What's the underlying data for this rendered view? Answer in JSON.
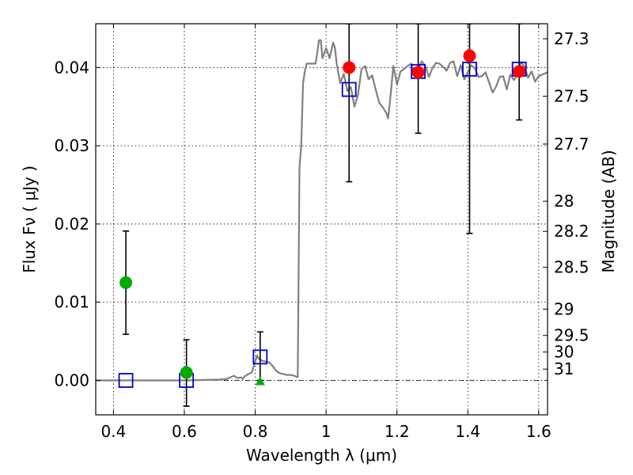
{
  "chart_data": {
    "type": "scatter",
    "xlabel": "Wavelength  λ (μm)",
    "ylabel": "Flux  Fν  ( μJy )",
    "y2label": "Magnitude (AB)",
    "xlim": [
      0.35,
      1.625
    ],
    "ylim": [
      -0.0044,
      0.0456
    ],
    "grid": true,
    "x_ticks": [
      0.4,
      0.6,
      0.8,
      1.0,
      1.2,
      1.4,
      1.6
    ],
    "x_tick_labels": [
      "0.4",
      "0.6",
      "0.8",
      "1",
      "1.2",
      "1.4",
      "1.6"
    ],
    "y_ticks": [
      0.0,
      0.01,
      0.02,
      0.03,
      0.04
    ],
    "y_tick_labels": [
      "0.00",
      "0.01",
      "0.02",
      "0.03",
      "0.04"
    ],
    "mag_ticks": [
      {
        "label": "27.3",
        "flux": 0.04368
      },
      {
        "label": "27.5",
        "flux": 0.03633
      },
      {
        "label": "27.7",
        "flux": 0.03022
      },
      {
        "label": "28",
        "flux": 0.02291
      },
      {
        "label": "28.2",
        "flux": 0.01906
      },
      {
        "label": "28.5",
        "flux": 0.01446
      },
      {
        "label": "29",
        "flux": 0.00912
      },
      {
        "label": "29.5",
        "flux": 0.00575
      },
      {
        "label": "30",
        "flux": 0.00363
      },
      {
        "label": "31",
        "flux": 0.00145
      }
    ],
    "colors": {
      "model": "#808080",
      "model_photometry": "#0000cc",
      "red_points": "#ff0000",
      "green_points": "#00aa00",
      "errorbar": "#000000",
      "zero_line": "#000000"
    },
    "model_sed": {
      "x": [
        0.35,
        0.6,
        0.7,
        0.72,
        0.74,
        0.75,
        0.76,
        0.765,
        0.77,
        0.78,
        0.79,
        0.8,
        0.805,
        0.81,
        0.82,
        0.83,
        0.84,
        0.85,
        0.86,
        0.87,
        0.88,
        0.89,
        0.9,
        0.91,
        0.92,
        0.925,
        0.93,
        0.935,
        0.94,
        0.945,
        0.95,
        0.96,
        0.97,
        0.975,
        0.98,
        0.985,
        0.99,
        1.0,
        1.01,
        1.02,
        1.025,
        1.03,
        1.04,
        1.05,
        1.06,
        1.07,
        1.08,
        1.09,
        1.1,
        1.11,
        1.12,
        1.13,
        1.14,
        1.15,
        1.16,
        1.17,
        1.175,
        1.18,
        1.19,
        1.2,
        1.21,
        1.22,
        1.23,
        1.24,
        1.25,
        1.26,
        1.27,
        1.28,
        1.29,
        1.3,
        1.31,
        1.32,
        1.33,
        1.34,
        1.35,
        1.36,
        1.37,
        1.38,
        1.39,
        1.4,
        1.41,
        1.42,
        1.43,
        1.44,
        1.45,
        1.46,
        1.47,
        1.48,
        1.49,
        1.5,
        1.51,
        1.52,
        1.53,
        1.54,
        1.55,
        1.56,
        1.57,
        1.58,
        1.59,
        1.6,
        1.61,
        1.625
      ],
      "y": [
        0.0,
        0.0,
        0.0001,
        0.0002,
        0.0006,
        0.0003,
        0.0004,
        0.0002,
        0.0005,
        0.0008,
        0.001,
        0.0024,
        0.0032,
        0.0028,
        0.0025,
        0.0024,
        0.0023,
        0.0018,
        0.0012,
        0.0009,
        0.0008,
        0.0007,
        0.0007,
        0.0006,
        0.0004,
        0.0272,
        0.03,
        0.038,
        0.0395,
        0.0405,
        0.0405,
        0.0405,
        0.0405,
        0.0418,
        0.0435,
        0.0435,
        0.0412,
        0.0425,
        0.0412,
        0.0432,
        0.0425,
        0.0405,
        0.038,
        0.0392,
        0.037,
        0.0375,
        0.035,
        0.0365,
        0.0398,
        0.0402,
        0.0385,
        0.039,
        0.0372,
        0.0355,
        0.0349,
        0.0342,
        0.0335,
        0.0355,
        0.0402,
        0.0378,
        0.0395,
        0.0398,
        0.0402,
        0.0405,
        0.0392,
        0.0398,
        0.0408,
        0.0402,
        0.0388,
        0.0399,
        0.0406,
        0.0405,
        0.0401,
        0.0396,
        0.0406,
        0.0408,
        0.0389,
        0.0403,
        0.0385,
        0.0394,
        0.0403,
        0.0399,
        0.0388,
        0.0389,
        0.0394,
        0.0381,
        0.0368,
        0.0376,
        0.0388,
        0.0389,
        0.0372,
        0.0391,
        0.0384,
        0.0392,
        0.0407,
        0.0401,
        0.0387,
        0.0395,
        0.0382,
        0.0389,
        0.0391,
        0.0394
      ]
    },
    "model_photometry": [
      {
        "x": 0.435,
        "y": 0.0
      },
      {
        "x": 0.606,
        "y": 0.0
      },
      {
        "x": 0.814,
        "y": 0.003
      },
      {
        "x": 1.065,
        "y": 0.0372
      },
      {
        "x": 1.26,
        "y": 0.0395
      },
      {
        "x": 1.405,
        "y": 0.0398
      },
      {
        "x": 1.545,
        "y": 0.0398
      }
    ],
    "observed_red": [
      {
        "x": 1.065,
        "y": 0.04,
        "yerr_low": 0.0146,
        "yerr_high": 0.0056
      },
      {
        "x": 1.26,
        "y": 0.0394,
        "yerr_low": 0.0078,
        "yerr_high": 0.0062
      },
      {
        "x": 1.405,
        "y": 0.0415,
        "yerr_low": 0.0227,
        "yerr_high": 0.0041
      },
      {
        "x": 1.545,
        "y": 0.0395,
        "yerr_low": 0.0062,
        "yerr_high": 0.0061
      }
    ],
    "observed_green": [
      {
        "x": 0.435,
        "y": 0.0125,
        "yerr_low": 0.0066,
        "yerr_high": 0.0066
      },
      {
        "x": 0.606,
        "y": 0.001,
        "yerr_low": 0.0043,
        "yerr_high": 0.0042
      }
    ],
    "upper_limit_errorbar": {
      "x": 0.814,
      "y_low": 0.0,
      "y_high": 0.0062
    },
    "green_triangle": {
      "x": 0.814,
      "y": 0.0
    }
  }
}
